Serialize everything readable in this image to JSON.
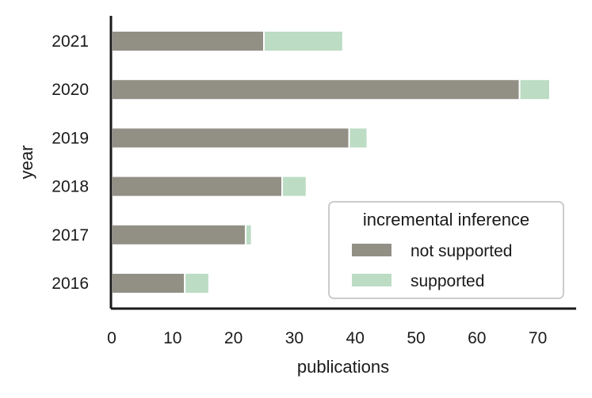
{
  "chart_data": {
    "type": "bar",
    "orientation": "horizontal",
    "stacked": true,
    "categories": [
      "2016",
      "2017",
      "2018",
      "2019",
      "2020",
      "2021"
    ],
    "series": [
      {
        "name": "not supported",
        "values": [
          12,
          22,
          28,
          39,
          67,
          25
        ],
        "color": "#929085"
      },
      {
        "name": "supported",
        "values": [
          4,
          1,
          4,
          3,
          5,
          13
        ],
        "color": "#bcdcc4"
      }
    ],
    "xlabel": "publications",
    "ylabel": "year",
    "xlim": [
      0,
      76
    ],
    "xticks": [
      "0",
      "10",
      "20",
      "30",
      "40",
      "50",
      "60",
      "70"
    ],
    "legend": {
      "title": "incremental inference",
      "position": "lower-right"
    },
    "grid": false
  }
}
